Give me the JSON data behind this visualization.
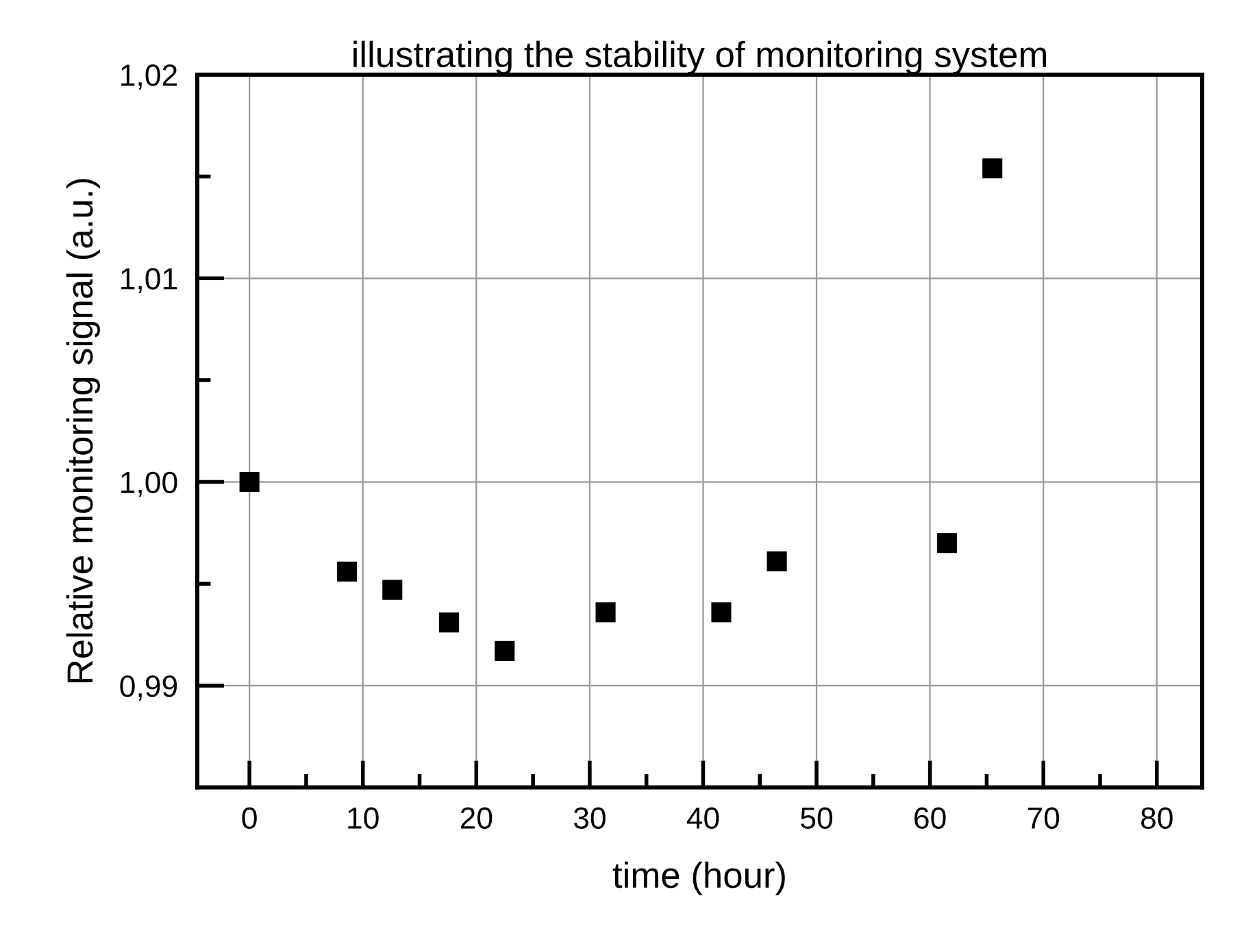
{
  "chart_data": {
    "type": "scatter",
    "title": "illustrating the stability of monitoring system",
    "xlabel": "time (hour)",
    "ylabel": "Relative monitoring signal (a.u.)",
    "x": [
      0,
      8.6,
      12.6,
      17.6,
      22.5,
      31.4,
      41.6,
      46.5,
      61.5,
      65.5
    ],
    "series": [
      {
        "color": "#000000",
        "values": [
          1.0,
          0.9956,
          0.9947,
          0.9931,
          0.9917,
          0.9936,
          0.9936,
          0.9961,
          0.997,
          1.0154
        ]
      }
    ],
    "marker": "square",
    "grid": true,
    "xlim": [
      -4.6,
      84
    ],
    "ylim": [
      0.985,
      1.02
    ],
    "xticks": [
      0,
      {
        "value": 5,
        "label": null
      },
      10,
      {
        "value": 15,
        "label": null
      },
      20,
      {
        "value": 25,
        "label": null
      },
      30,
      {
        "value": 35,
        "label": null
      },
      40,
      {
        "value": 45,
        "label": null
      },
      50,
      {
        "value": 55,
        "label": null
      },
      60,
      {
        "value": 65,
        "label": null
      },
      70,
      {
        "value": 75,
        "label": null
      },
      80
    ],
    "yticks": [
      {
        "value": 0.99,
        "label": "0,99"
      },
      {
        "value": 0.995,
        "label": null
      },
      {
        "value": 1.0,
        "label": "1,00"
      },
      {
        "value": 1.005,
        "label": null
      },
      {
        "value": 1.01,
        "label": "1,01"
      },
      {
        "value": 1.015,
        "label": null
      },
      {
        "value": 1.02,
        "label": "1,02"
      }
    ]
  }
}
